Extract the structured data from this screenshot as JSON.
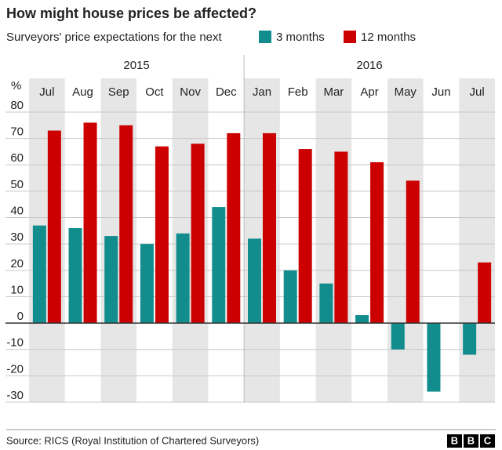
{
  "chart_data": {
    "type": "bar",
    "title": "How might house prices be affected?",
    "legend_title": "Surveyors' price expectations for the next",
    "y_unit": "%",
    "categories": [
      "Jul",
      "Aug",
      "Sep",
      "Oct",
      "Nov",
      "Dec",
      "Jan",
      "Feb",
      "Mar",
      "Apr",
      "May",
      "Jun",
      "Jul"
    ],
    "category_groups": [
      {
        "label": "2015",
        "count": 6
      },
      {
        "label": "2016",
        "count": 7
      }
    ],
    "series": [
      {
        "name": "3 months",
        "color": "#128c8c",
        "values": [
          37,
          36,
          33,
          30,
          34,
          44,
          32,
          20,
          15,
          3,
          -10,
          -26,
          -12
        ]
      },
      {
        "name": "12 months",
        "color": "#cc0000",
        "values": [
          73,
          76,
          75,
          67,
          68,
          72,
          72,
          66,
          65,
          61,
          54,
          0,
          23
        ]
      }
    ],
    "ylim": [
      -30,
      80
    ],
    "yticks": [
      -30,
      -20,
      -10,
      0,
      10,
      20,
      30,
      40,
      50,
      60,
      70,
      80
    ],
    "grid": true,
    "source": "Source: RICS (Royal Institution of Chartered Surveyors)",
    "logo": [
      "B",
      "B",
      "C"
    ]
  }
}
